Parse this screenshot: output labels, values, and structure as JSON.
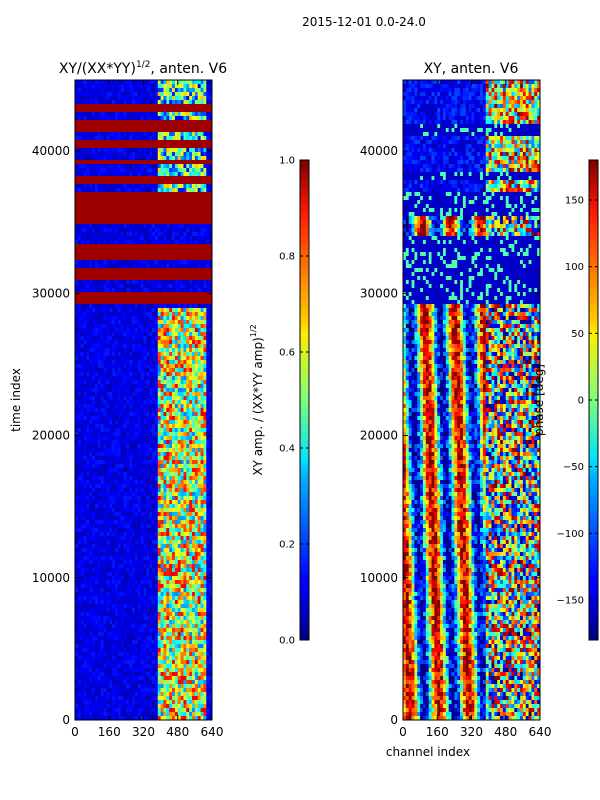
{
  "suptitle": "2015-12-01 0.0-24.0",
  "chart_data": [
    {
      "type": "heatmap",
      "title_main": "XY/(XX*YY)",
      "title_exp": "1/2",
      "title_tail": ", anten. V6",
      "xlabel": "",
      "ylabel": "time index",
      "xlim": [
        0,
        640
      ],
      "ylim": [
        0,
        45000
      ],
      "xticks": [
        "0",
        "160",
        "320",
        "480",
        "640"
      ],
      "xtick_values": [
        0,
        160,
        320,
        480,
        640
      ],
      "yticks": [
        "0",
        "10000",
        "20000",
        "30000",
        "40000"
      ],
      "ytick_values": [
        0,
        10000,
        20000,
        30000,
        40000
      ],
      "colorbar": {
        "label_main": "XY amp. / (XX*YY amp)",
        "label_exp": "1/2",
        "range": [
          0.0,
          1.0
        ],
        "ticks": [
          "0.0",
          "0.2",
          "0.4",
          "0.6",
          "0.8",
          "1.0"
        ],
        "tick_values": [
          0.0,
          0.2,
          0.4,
          0.6,
          0.8,
          1.0
        ]
      },
      "saturated_time_bands": [
        [
          29200,
          30200
        ],
        [
          30800,
          31700
        ],
        [
          32400,
          33400
        ],
        [
          34800,
          37000
        ],
        [
          37700,
          38200
        ],
        [
          39000,
          39500
        ],
        [
          40200,
          40800
        ],
        [
          41400,
          42100
        ],
        [
          42700,
          43400
        ]
      ],
      "bright_channel_range": [
        380,
        620
      ]
    },
    {
      "type": "heatmap",
      "title": "XY, anten. V6",
      "xlabel": "channel index",
      "ylabel": "",
      "xlim": [
        0,
        640
      ],
      "ylim": [
        0,
        45000
      ],
      "xticks": [
        "0",
        "160",
        "320",
        "480",
        "640"
      ],
      "xtick_values": [
        0,
        160,
        320,
        480,
        640
      ],
      "yticks": [
        "0",
        "10000",
        "20000",
        "30000",
        "40000"
      ],
      "ytick_values": [
        0,
        10000,
        20000,
        30000,
        40000
      ],
      "colorbar": {
        "label": "phase [deg]",
        "range": [
          -180,
          180
        ],
        "ticks": [
          "−150",
          "−100",
          "−50",
          "0",
          "50",
          "100",
          "150"
        ],
        "tick_values": [
          -150,
          -100,
          -50,
          0,
          50,
          100,
          150
        ]
      },
      "flagged_time_bands": [
        [
          29200,
          34000
        ],
        [
          35500,
          37000
        ],
        [
          38000,
          38600
        ],
        [
          41000,
          42000
        ]
      ],
      "feature_channel_range": [
        380,
        640
      ]
    }
  ]
}
